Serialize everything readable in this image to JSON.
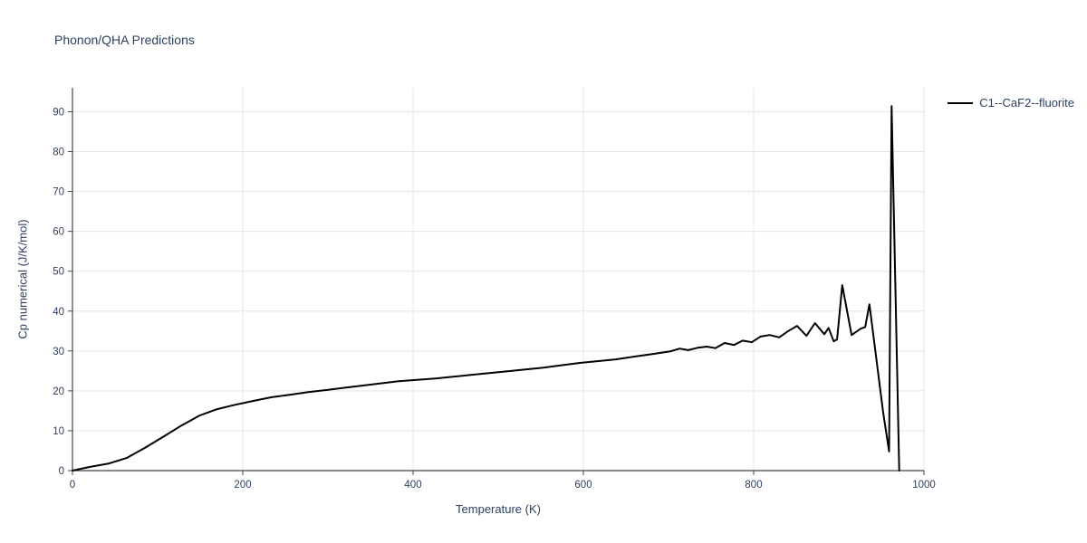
{
  "title": "Phonon/QHA Predictions",
  "colors": {
    "text": "#2a3f5f",
    "grid": "#e5e5e5",
    "axis": "#444444",
    "line": "#000000",
    "background": "#ffffff"
  },
  "chart_data": {
    "type": "line",
    "title": "Phonon/QHA Predictions",
    "xlabel": "Temperature (K)",
    "ylabel": "Cp numerical (J/K/mol)",
    "xlim": [
      0,
      1000
    ],
    "ylim": [
      0,
      96
    ],
    "xticks": [
      0,
      200,
      400,
      600,
      800,
      1000
    ],
    "yticks": [
      0,
      10,
      20,
      30,
      40,
      50,
      60,
      70,
      80,
      90
    ],
    "grid": true,
    "legend_position": "top-right",
    "series": [
      {
        "name": "C1--CaF2--fluorite",
        "color": "#000000",
        "x": [
          0,
          20,
          43,
          64,
          85,
          106,
          128,
          149,
          170,
          191,
          213,
          234,
          255,
          277,
          298,
          340,
          383,
          426,
          468,
          511,
          553,
          596,
          638,
          660,
          681,
          702,
          713,
          723,
          734,
          745,
          755,
          766,
          777,
          787,
          798,
          808,
          819,
          830,
          840,
          851,
          862,
          872,
          883,
          888,
          894,
          898,
          904,
          915,
          926,
          931,
          936,
          952,
          959,
          962,
          971
        ],
        "y": [
          0,
          0.9,
          1.8,
          3.2,
          5.7,
          8.4,
          11.3,
          13.8,
          15.4,
          16.5,
          17.5,
          18.4,
          19.0,
          19.7,
          20.2,
          21.3,
          22.4,
          23.1,
          24.0,
          24.9,
          25.8,
          27.0,
          27.9,
          28.6,
          29.2,
          29.9,
          30.6,
          30.2,
          30.8,
          31.1,
          30.7,
          32.0,
          31.5,
          32.6,
          32.2,
          33.6,
          34.0,
          33.4,
          34.9,
          36.3,
          33.8,
          37.0,
          34.2,
          35.8,
          32.4,
          32.9,
          46.5,
          34.0,
          35.6,
          36.0,
          41.7,
          14.7,
          4.8,
          91.4,
          0
        ]
      }
    ]
  }
}
